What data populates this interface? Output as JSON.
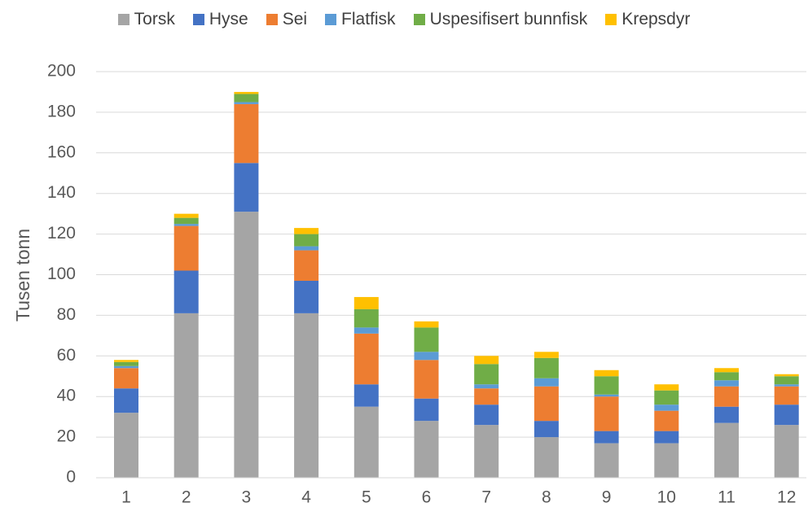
{
  "chart_data": {
    "type": "stacked_bar",
    "y_label": "Tusen tonn",
    "categories": [
      "1",
      "2",
      "3",
      "4",
      "5",
      "6",
      "7",
      "8",
      "9",
      "10",
      "11",
      "12"
    ],
    "series": [
      {
        "name": "Torsk",
        "color": "#a5a5a5",
        "values": [
          32,
          81,
          131,
          81,
          35,
          28,
          26,
          20,
          17,
          17,
          27,
          26
        ]
      },
      {
        "name": "Hyse",
        "color": "#4472c4",
        "values": [
          12,
          21,
          24,
          16,
          11,
          11,
          10,
          8,
          6,
          6,
          8,
          10
        ]
      },
      {
        "name": "Sei",
        "color": "#ed7d31",
        "values": [
          10,
          22,
          29,
          15,
          25,
          19,
          8,
          17,
          17,
          10,
          10,
          9
        ]
      },
      {
        "name": "Flatfisk",
        "color": "#5b9bd5",
        "values": [
          1,
          1,
          1,
          2,
          3,
          4,
          2,
          4,
          1,
          3,
          3,
          1
        ]
      },
      {
        "name": "Uspesifisert bunnfisk",
        "color": "#70ad47",
        "values": [
          2,
          3,
          4,
          6,
          9,
          12,
          10,
          10,
          9,
          7,
          4,
          4
        ]
      },
      {
        "name": "Krepsdyr",
        "color": "#ffc000",
        "values": [
          1,
          2,
          1,
          3,
          6,
          3,
          4,
          3,
          3,
          3,
          2,
          1
        ]
      }
    ],
    "ylim": [
      0,
      200
    ],
    "yticks": [
      0,
      20,
      40,
      60,
      80,
      100,
      120,
      140,
      160,
      180,
      200
    ],
    "grid": true,
    "legend": "top"
  }
}
